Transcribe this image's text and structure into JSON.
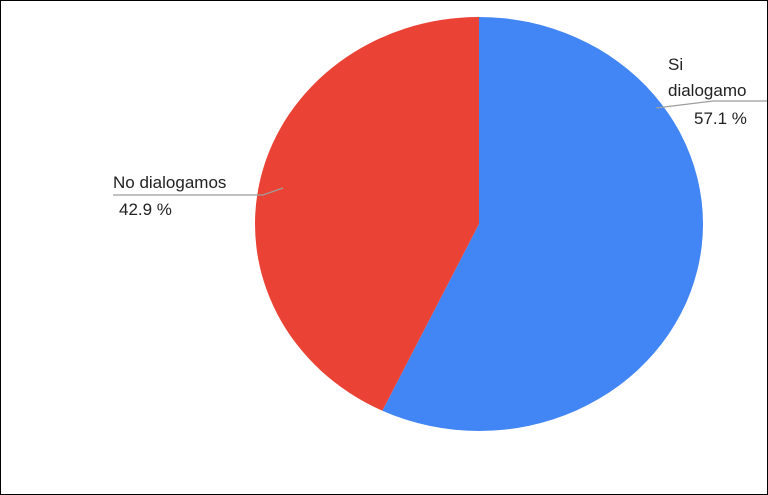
{
  "chart_data": {
    "type": "pie",
    "title": "",
    "slices": [
      {
        "label": "Si dialogamos",
        "label_lines": [
          "Si",
          "dialogamo"
        ],
        "value": 57.1,
        "value_label": "57.1 %",
        "color": "#4285f4"
      },
      {
        "label": "No dialogamos",
        "label_lines": [
          "No dialogamos"
        ],
        "value": 42.9,
        "value_label": "42.9 %",
        "color": "#ea4335"
      }
    ],
    "start_angle": "12 o'clock",
    "direction": "clockwise",
    "legend": "none",
    "label_placement": "outside-with-leader-lines"
  }
}
